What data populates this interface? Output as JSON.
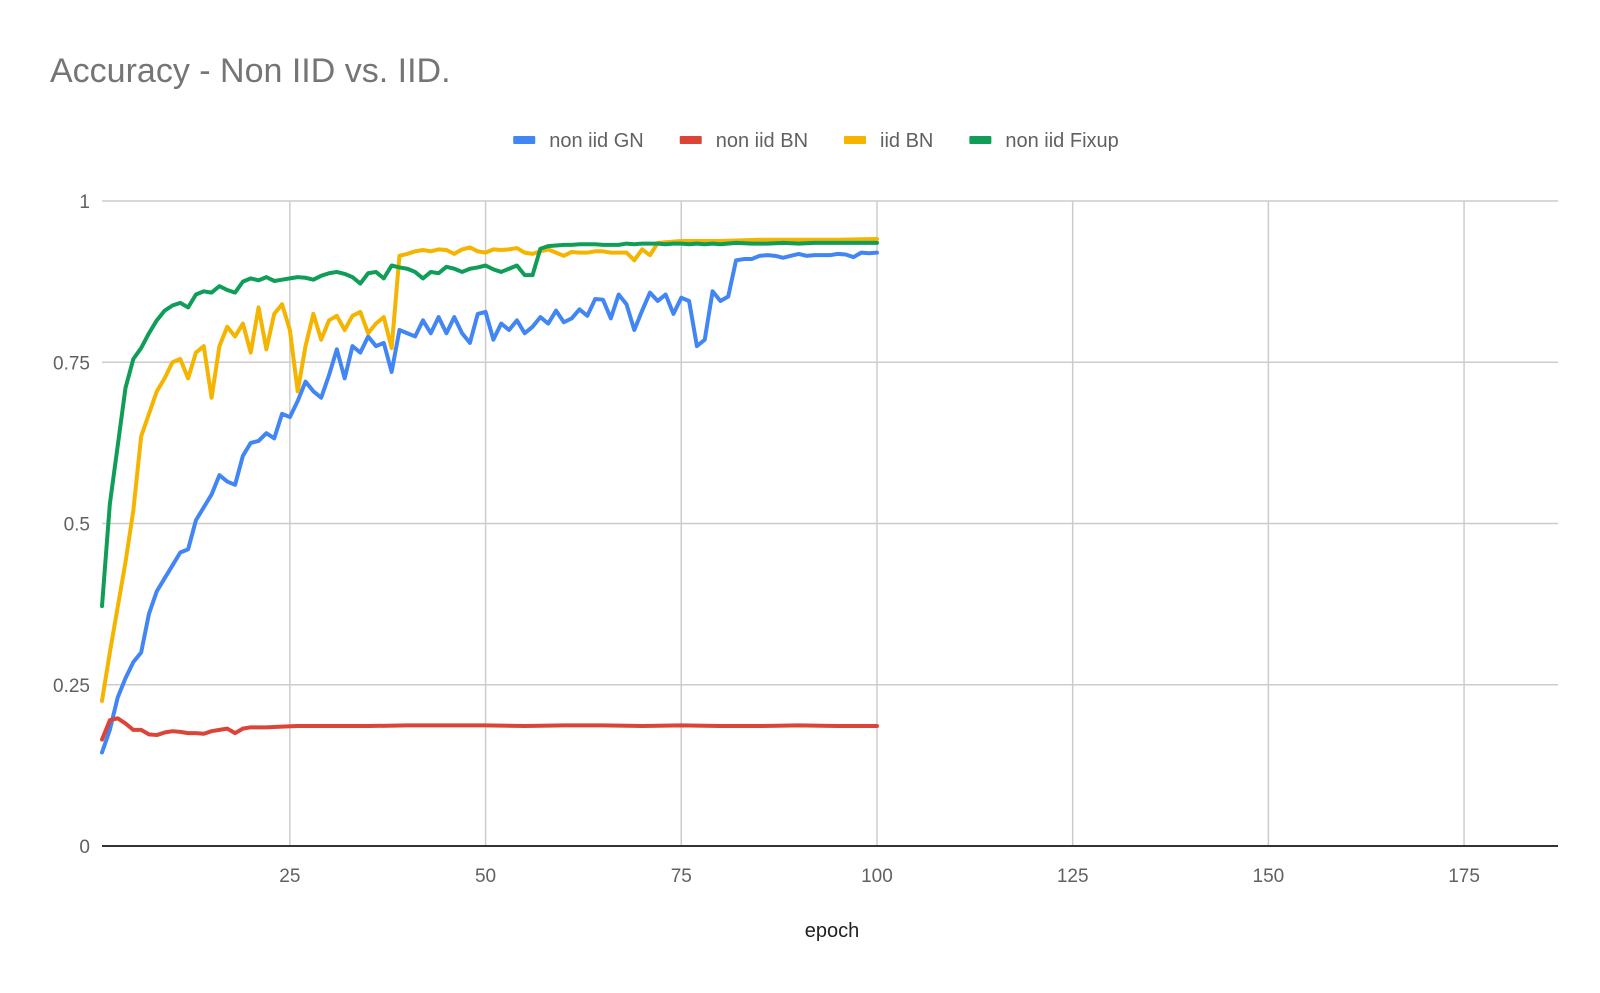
{
  "chart_data": {
    "type": "line",
    "title": "Accuracy - Non IID vs. IID.",
    "xlabel": "epoch",
    "ylabel": "",
    "xlim": [
      1,
      187
    ],
    "ylim": [
      0,
      1
    ],
    "x_ticks": [
      25,
      50,
      75,
      100,
      125,
      150,
      175
    ],
    "x_tick_labels": [
      "25",
      "50",
      "75",
      "100",
      "125",
      "150",
      "175"
    ],
    "y_ticks": [
      0,
      0.25,
      0.5,
      0.75,
      1
    ],
    "y_tick_labels": [
      "0",
      "0.25",
      "0.5",
      "0.75",
      "1"
    ],
    "grid": true,
    "legend_position": "top-center",
    "series": [
      {
        "name": "non iid GN",
        "color": "#4285F4",
        "points": [
          [
            1,
            0.145
          ],
          [
            2,
            0.18
          ],
          [
            3,
            0.23
          ],
          [
            4,
            0.26
          ],
          [
            5,
            0.285
          ],
          [
            6,
            0.3
          ],
          [
            7,
            0.36
          ],
          [
            8,
            0.395
          ],
          [
            9,
            0.415
          ],
          [
            10,
            0.435
          ],
          [
            11,
            0.455
          ],
          [
            12,
            0.46
          ],
          [
            13,
            0.505
          ],
          [
            14,
            0.525
          ],
          [
            15,
            0.545
          ],
          [
            16,
            0.575
          ],
          [
            17,
            0.565
          ],
          [
            18,
            0.56
          ],
          [
            19,
            0.605
          ],
          [
            20,
            0.625
          ],
          [
            21,
            0.628
          ],
          [
            22,
            0.64
          ],
          [
            23,
            0.632
          ],
          [
            24,
            0.67
          ],
          [
            25,
            0.665
          ],
          [
            26,
            0.69
          ],
          [
            27,
            0.72
          ],
          [
            28,
            0.705
          ],
          [
            29,
            0.695
          ],
          [
            30,
            0.73
          ],
          [
            31,
            0.77
          ],
          [
            32,
            0.725
          ],
          [
            33,
            0.775
          ],
          [
            34,
            0.765
          ],
          [
            35,
            0.79
          ],
          [
            36,
            0.775
          ],
          [
            37,
            0.78
          ],
          [
            38,
            0.735
          ],
          [
            39,
            0.8
          ],
          [
            40,
            0.795
          ],
          [
            41,
            0.79
          ],
          [
            42,
            0.815
          ],
          [
            43,
            0.795
          ],
          [
            44,
            0.82
          ],
          [
            45,
            0.795
          ],
          [
            46,
            0.82
          ],
          [
            47,
            0.795
          ],
          [
            48,
            0.78
          ],
          [
            49,
            0.825
          ],
          [
            50,
            0.828
          ],
          [
            51,
            0.785
          ],
          [
            52,
            0.81
          ],
          [
            53,
            0.8
          ],
          [
            54,
            0.815
          ],
          [
            55,
            0.795
          ],
          [
            56,
            0.805
          ],
          [
            57,
            0.82
          ],
          [
            58,
            0.81
          ],
          [
            59,
            0.83
          ],
          [
            60,
            0.812
          ],
          [
            61,
            0.818
          ],
          [
            62,
            0.832
          ],
          [
            63,
            0.822
          ],
          [
            64,
            0.848
          ],
          [
            65,
            0.847
          ],
          [
            66,
            0.818
          ],
          [
            67,
            0.855
          ],
          [
            68,
            0.84
          ],
          [
            69,
            0.8
          ],
          [
            70,
            0.83
          ],
          [
            71,
            0.858
          ],
          [
            72,
            0.845
          ],
          [
            73,
            0.855
          ],
          [
            74,
            0.825
          ],
          [
            75,
            0.85
          ],
          [
            76,
            0.845
          ],
          [
            77,
            0.775
          ],
          [
            78,
            0.785
          ],
          [
            79,
            0.86
          ],
          [
            80,
            0.845
          ],
          [
            81,
            0.852
          ],
          [
            82,
            0.908
          ],
          [
            83,
            0.91
          ],
          [
            84,
            0.91
          ],
          [
            85,
            0.915
          ],
          [
            86,
            0.916
          ],
          [
            87,
            0.915
          ],
          [
            88,
            0.912
          ],
          [
            89,
            0.915
          ],
          [
            90,
            0.918
          ],
          [
            91,
            0.915
          ],
          [
            92,
            0.916
          ],
          [
            93,
            0.916
          ],
          [
            94,
            0.916
          ],
          [
            95,
            0.918
          ],
          [
            96,
            0.917
          ],
          [
            97,
            0.913
          ],
          [
            98,
            0.92
          ],
          [
            99,
            0.919
          ],
          [
            100,
            0.92
          ]
        ]
      },
      {
        "name": "non iid BN",
        "color": "#DB4437",
        "points": [
          [
            1,
            0.165
          ],
          [
            2,
            0.195
          ],
          [
            3,
            0.198
          ],
          [
            4,
            0.19
          ],
          [
            5,
            0.18
          ],
          [
            6,
            0.18
          ],
          [
            7,
            0.173
          ],
          [
            8,
            0.172
          ],
          [
            9,
            0.176
          ],
          [
            10,
            0.178
          ],
          [
            11,
            0.177
          ],
          [
            12,
            0.175
          ],
          [
            13,
            0.175
          ],
          [
            14,
            0.174
          ],
          [
            15,
            0.178
          ],
          [
            16,
            0.18
          ],
          [
            17,
            0.182
          ],
          [
            18,
            0.175
          ],
          [
            19,
            0.182
          ],
          [
            20,
            0.184
          ],
          [
            22,
            0.184
          ],
          [
            24,
            0.185
          ],
          [
            26,
            0.186
          ],
          [
            30,
            0.186
          ],
          [
            35,
            0.186
          ],
          [
            40,
            0.187
          ],
          [
            45,
            0.187
          ],
          [
            50,
            0.187
          ],
          [
            55,
            0.186
          ],
          [
            60,
            0.187
          ],
          [
            65,
            0.187
          ],
          [
            70,
            0.186
          ],
          [
            75,
            0.187
          ],
          [
            80,
            0.186
          ],
          [
            85,
            0.186
          ],
          [
            90,
            0.187
          ],
          [
            95,
            0.186
          ],
          [
            100,
            0.186
          ]
        ]
      },
      {
        "name": "iid BN",
        "color": "#F4B400",
        "points": [
          [
            1,
            0.225
          ],
          [
            2,
            0.3
          ],
          [
            3,
            0.37
          ],
          [
            4,
            0.44
          ],
          [
            5,
            0.52
          ],
          [
            6,
            0.635
          ],
          [
            7,
            0.67
          ],
          [
            8,
            0.705
          ],
          [
            9,
            0.725
          ],
          [
            10,
            0.75
          ],
          [
            11,
            0.755
          ],
          [
            12,
            0.725
          ],
          [
            13,
            0.765
          ],
          [
            14,
            0.775
          ],
          [
            15,
            0.695
          ],
          [
            16,
            0.775
          ],
          [
            17,
            0.805
          ],
          [
            18,
            0.79
          ],
          [
            19,
            0.81
          ],
          [
            20,
            0.765
          ],
          [
            21,
            0.835
          ],
          [
            22,
            0.77
          ],
          [
            23,
            0.825
          ],
          [
            24,
            0.84
          ],
          [
            25,
            0.8
          ],
          [
            26,
            0.705
          ],
          [
            27,
            0.775
          ],
          [
            28,
            0.825
          ],
          [
            29,
            0.785
          ],
          [
            30,
            0.815
          ],
          [
            31,
            0.822
          ],
          [
            32,
            0.8
          ],
          [
            33,
            0.822
          ],
          [
            34,
            0.828
          ],
          [
            35,
            0.795
          ],
          [
            36,
            0.81
          ],
          [
            37,
            0.82
          ],
          [
            38,
            0.772
          ],
          [
            39,
            0.915
          ],
          [
            40,
            0.918
          ],
          [
            41,
            0.922
          ],
          [
            42,
            0.924
          ],
          [
            43,
            0.922
          ],
          [
            44,
            0.925
          ],
          [
            45,
            0.924
          ],
          [
            46,
            0.918
          ],
          [
            47,
            0.925
          ],
          [
            48,
            0.928
          ],
          [
            49,
            0.922
          ],
          [
            50,
            0.92
          ],
          [
            51,
            0.925
          ],
          [
            52,
            0.924
          ],
          [
            53,
            0.925
          ],
          [
            54,
            0.927
          ],
          [
            55,
            0.92
          ],
          [
            56,
            0.918
          ],
          [
            57,
            0.922
          ],
          [
            58,
            0.925
          ],
          [
            59,
            0.92
          ],
          [
            60,
            0.915
          ],
          [
            61,
            0.921
          ],
          [
            62,
            0.92
          ],
          [
            63,
            0.92
          ],
          [
            64,
            0.922
          ],
          [
            65,
            0.922
          ],
          [
            66,
            0.92
          ],
          [
            67,
            0.92
          ],
          [
            68,
            0.92
          ],
          [
            69,
            0.908
          ],
          [
            70,
            0.925
          ],
          [
            71,
            0.916
          ],
          [
            72,
            0.935
          ],
          [
            73,
            0.936
          ],
          [
            75,
            0.938
          ],
          [
            80,
            0.938
          ],
          [
            85,
            0.94
          ],
          [
            90,
            0.94
          ],
          [
            95,
            0.94
          ],
          [
            100,
            0.941
          ]
        ]
      },
      {
        "name": "non iid Fixup",
        "color": "#0F9D58",
        "points": [
          [
            1,
            0.372
          ],
          [
            2,
            0.53
          ],
          [
            3,
            0.62
          ],
          [
            4,
            0.71
          ],
          [
            5,
            0.755
          ],
          [
            6,
            0.772
          ],
          [
            7,
            0.795
          ],
          [
            8,
            0.815
          ],
          [
            9,
            0.83
          ],
          [
            10,
            0.838
          ],
          [
            11,
            0.842
          ],
          [
            12,
            0.835
          ],
          [
            13,
            0.855
          ],
          [
            14,
            0.86
          ],
          [
            15,
            0.858
          ],
          [
            16,
            0.868
          ],
          [
            17,
            0.862
          ],
          [
            18,
            0.858
          ],
          [
            19,
            0.875
          ],
          [
            20,
            0.88
          ],
          [
            21,
            0.877
          ],
          [
            22,
            0.882
          ],
          [
            23,
            0.876
          ],
          [
            24,
            0.878
          ],
          [
            25,
            0.88
          ],
          [
            26,
            0.882
          ],
          [
            27,
            0.881
          ],
          [
            28,
            0.878
          ],
          [
            29,
            0.884
          ],
          [
            30,
            0.888
          ],
          [
            31,
            0.89
          ],
          [
            32,
            0.887
          ],
          [
            33,
            0.882
          ],
          [
            34,
            0.872
          ],
          [
            35,
            0.888
          ],
          [
            36,
            0.89
          ],
          [
            37,
            0.88
          ],
          [
            38,
            0.9
          ],
          [
            39,
            0.897
          ],
          [
            40,
            0.895
          ],
          [
            41,
            0.89
          ],
          [
            42,
            0.88
          ],
          [
            43,
            0.89
          ],
          [
            44,
            0.888
          ],
          [
            45,
            0.898
          ],
          [
            46,
            0.895
          ],
          [
            47,
            0.89
          ],
          [
            48,
            0.895
          ],
          [
            49,
            0.897
          ],
          [
            50,
            0.9
          ],
          [
            51,
            0.894
          ],
          [
            52,
            0.89
          ],
          [
            53,
            0.895
          ],
          [
            54,
            0.9
          ],
          [
            55,
            0.885
          ],
          [
            56,
            0.885
          ],
          [
            57,
            0.926
          ],
          [
            58,
            0.93
          ],
          [
            59,
            0.931
          ],
          [
            60,
            0.932
          ],
          [
            61,
            0.932
          ],
          [
            62,
            0.933
          ],
          [
            63,
            0.933
          ],
          [
            64,
            0.933
          ],
          [
            65,
            0.932
          ],
          [
            66,
            0.932
          ],
          [
            67,
            0.932
          ],
          [
            68,
            0.934
          ],
          [
            69,
            0.933
          ],
          [
            70,
            0.934
          ],
          [
            71,
            0.934
          ],
          [
            72,
            0.934
          ],
          [
            73,
            0.933
          ],
          [
            74,
            0.934
          ],
          [
            75,
            0.934
          ],
          [
            76,
            0.933
          ],
          [
            77,
            0.934
          ],
          [
            78,
            0.933
          ],
          [
            79,
            0.934
          ],
          [
            80,
            0.933
          ],
          [
            82,
            0.935
          ],
          [
            84,
            0.934
          ],
          [
            86,
            0.934
          ],
          [
            88,
            0.935
          ],
          [
            90,
            0.934
          ],
          [
            92,
            0.935
          ],
          [
            94,
            0.935
          ],
          [
            96,
            0.935
          ],
          [
            98,
            0.935
          ],
          [
            100,
            0.935
          ]
        ]
      }
    ]
  }
}
